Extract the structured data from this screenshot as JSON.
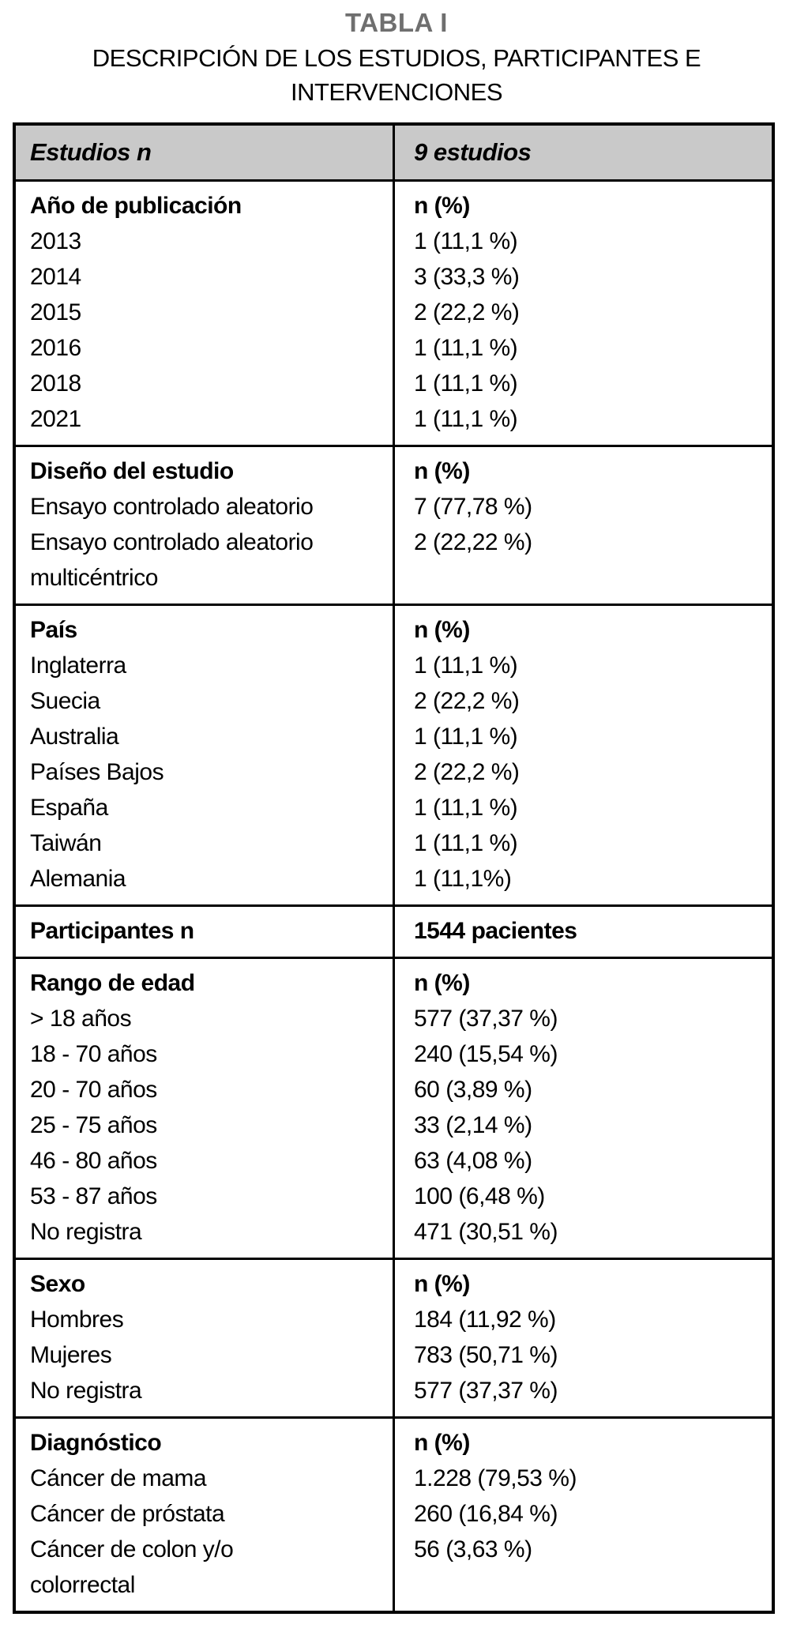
{
  "page": {
    "title": "TABLA I",
    "subtitle": "DESCRIPCIÓN DE LOS ESTUDIOS, PARTICIPANTES E INTERVENCIONES"
  },
  "colors": {
    "header_bg": "#c9c9c9",
    "title_gray": "#6f6f6f",
    "border_black": "#000000"
  },
  "table": {
    "header": {
      "col1": "Estudios n",
      "col2": "9 estudios"
    },
    "sections": [
      {
        "label": "Año de publicación",
        "value_header": "n (%)",
        "rows": [
          {
            "label": "2013",
            "value": "1 (11,1 %)"
          },
          {
            "label": "2014",
            "value": "3 (33,3 %)"
          },
          {
            "label": "2015",
            "value": "2 (22,2 %)"
          },
          {
            "label": "2016",
            "value": "1 (11,1 %)"
          },
          {
            "label": "2018",
            "value": "1 (11,1 %)"
          },
          {
            "label": "2021",
            "value": "1 (11,1 %)"
          }
        ]
      },
      {
        "label": "Diseño del estudio",
        "value_header": "n (%)",
        "rows": [
          {
            "label": "Ensayo controlado aleatorio",
            "value": "7 (77,78 %)"
          },
          {
            "label": "Ensayo controlado aleatorio multicéntrico",
            "value": "2 (22,22 %)"
          }
        ]
      },
      {
        "label": "País",
        "value_header": "n (%)",
        "rows": [
          {
            "label": "Inglaterra",
            "value": "1 (11,1 %)"
          },
          {
            "label": "Suecia",
            "value": "2 (22,2 %)"
          },
          {
            "label": "Australia",
            "value": "1 (11,1 %)"
          },
          {
            "label": "Países Bajos",
            "value": "2 (22,2 %)"
          },
          {
            "label": "España",
            "value": "1 (11,1 %)"
          },
          {
            "label": "Taiwán",
            "value": "1 (11,1 %)"
          },
          {
            "label": "Alemania",
            "value": "1 (11,1%)"
          }
        ]
      },
      {
        "label": "Participantes n",
        "value_header": "1544 pacientes",
        "rows": []
      },
      {
        "label": "Rango de edad",
        "value_header": "n (%)",
        "rows": [
          {
            "label": "> 18 años",
            "value": "577 (37,37 %)"
          },
          {
            "label": "18 - 70 años",
            "value": "240 (15,54 %)"
          },
          {
            "label": "20 - 70 años",
            "value": "60 (3,89 %)"
          },
          {
            "label": "25 - 75 años",
            "value": "33 (2,14 %)"
          },
          {
            "label": "46 - 80 años",
            "value": "63 (4,08 %)"
          },
          {
            "label": "53 - 87 años",
            "value": "100 (6,48 %)"
          },
          {
            "label": "No registra",
            "value": "471 (30,51 %)"
          }
        ]
      },
      {
        "label": "Sexo",
        "value_header": "n (%)",
        "rows": [
          {
            "label": "Hombres",
            "value": "184 (11,92 %)"
          },
          {
            "label": "Mujeres",
            "value": "783 (50,71 %)"
          },
          {
            "label": "No registra",
            "value": "577 (37,37 %)"
          }
        ]
      },
      {
        "label": "Diagnóstico",
        "value_header": "n (%)",
        "rows": [
          {
            "label": "Cáncer de mama",
            "value": "1.228 (79,53 %)"
          },
          {
            "label": "Cáncer de próstata",
            "value": "260 (16,84 %)"
          },
          {
            "label": "Cáncer de colon y/o colorrectal",
            "value": "56 (3,63 %)"
          }
        ]
      }
    ]
  }
}
